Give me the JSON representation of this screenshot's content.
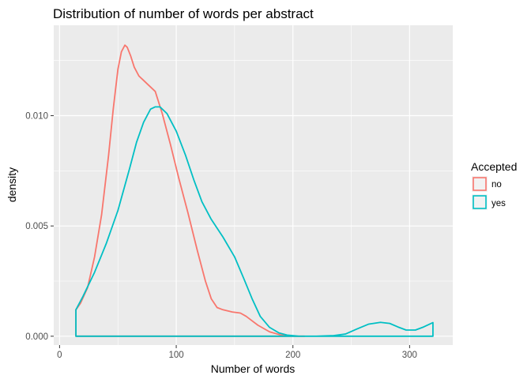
{
  "chart_data": {
    "type": "line",
    "title": "Distribution of number of words per abstract",
    "xlabel": "Number of words",
    "ylabel": "density",
    "xlim": [
      -5,
      337
    ],
    "ylim": [
      -0.0004,
      0.0141
    ],
    "x_ticks": [
      0,
      100,
      200,
      300
    ],
    "x_tick_labels": [
      "0",
      "100",
      "200",
      "300"
    ],
    "y_ticks": [
      0.0,
      0.005,
      0.01
    ],
    "y_tick_labels": [
      "0.000",
      "0.005",
      "0.010"
    ],
    "grid": true,
    "legend": {
      "title": "Accepted",
      "position": "right"
    },
    "series": [
      {
        "name": "no",
        "color": "#F8766D",
        "closed_outline": true,
        "x": [
          14,
          18,
          24,
          30,
          36,
          42,
          46,
          50,
          53,
          56,
          58,
          61,
          64,
          68,
          72,
          76,
          82,
          88,
          95,
          102,
          110,
          118,
          125,
          130,
          135,
          140,
          148,
          155,
          160,
          165,
          170,
          180,
          190,
          200,
          210
        ],
        "values": [
          0.0012,
          0.0015,
          0.0022,
          0.0036,
          0.0055,
          0.0082,
          0.0103,
          0.0121,
          0.0129,
          0.0132,
          0.0131,
          0.0127,
          0.0122,
          0.0118,
          0.0116,
          0.0114,
          0.0111,
          0.0101,
          0.0087,
          0.0072,
          0.0056,
          0.0039,
          0.0025,
          0.0017,
          0.0013,
          0.0012,
          0.0011,
          0.00105,
          0.0009,
          0.0007,
          0.0005,
          0.0002,
          5e-05,
          0.0,
          0.0
        ]
      },
      {
        "name": "yes",
        "color": "#00BFC4",
        "closed_outline": true,
        "x": [
          14,
          20,
          30,
          40,
          50,
          60,
          66,
          72,
          78,
          82,
          86,
          92,
          100,
          108,
          115,
          122,
          130,
          140,
          150,
          158,
          165,
          172,
          180,
          188,
          195,
          205,
          220,
          235,
          245,
          255,
          265,
          275,
          283,
          290,
          297,
          305,
          312,
          320
        ],
        "values": [
          0.0012,
          0.0018,
          0.0029,
          0.0042,
          0.0057,
          0.0076,
          0.0088,
          0.0097,
          0.0103,
          0.0104,
          0.0104,
          0.0101,
          0.0093,
          0.0082,
          0.0071,
          0.0061,
          0.0053,
          0.0045,
          0.0036,
          0.0026,
          0.0017,
          0.0009,
          0.0004,
          0.00015,
          5e-05,
          0.0,
          0.0,
          3e-05,
          0.0001,
          0.00033,
          0.00055,
          0.00063,
          0.00058,
          0.00042,
          0.00028,
          0.00028,
          0.00042,
          0.00062
        ]
      }
    ]
  }
}
